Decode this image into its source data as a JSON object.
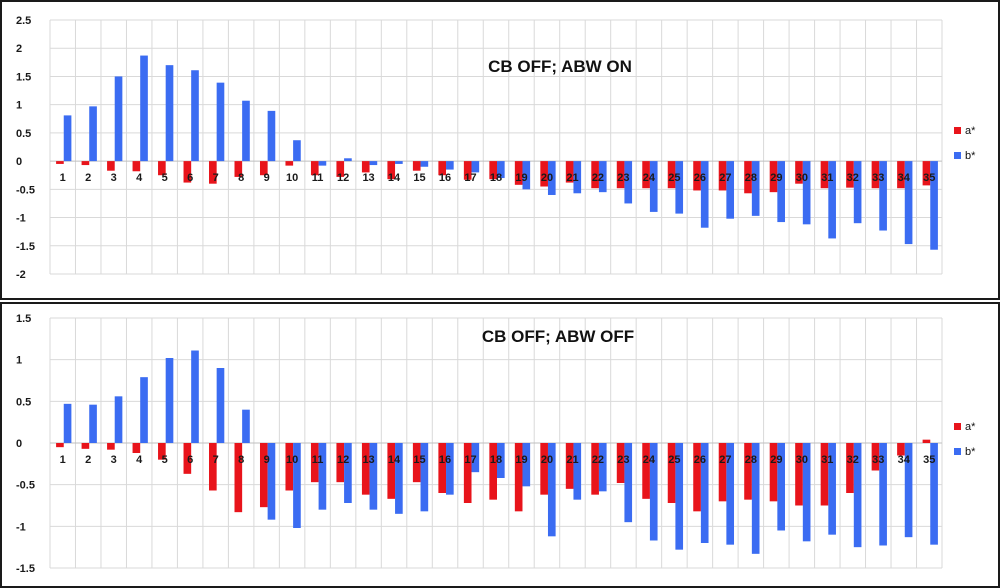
{
  "chart_data": [
    {
      "type": "bar",
      "title": "CB OFF; ABW ON",
      "categories": [
        "1",
        "2",
        "3",
        "4",
        "5",
        "6",
        "7",
        "8",
        "9",
        "10",
        "11",
        "12",
        "13",
        "14",
        "15",
        "16",
        "17",
        "18",
        "19",
        "20",
        "21",
        "22",
        "23",
        "24",
        "25",
        "26",
        "27",
        "28",
        "29",
        "30",
        "31",
        "32",
        "33",
        "34",
        "35"
      ],
      "ylim": [
        -2,
        2.5
      ],
      "yticks": [
        "2.5",
        "2",
        "1.5",
        "1",
        "0.5",
        "0",
        "-0.5",
        "-1",
        "-1.5",
        "-2"
      ],
      "ytick_values": [
        2.5,
        2,
        1.5,
        1,
        0.5,
        0,
        -0.5,
        -1,
        -1.5,
        -2
      ],
      "grid": true,
      "legend_position": "right",
      "series": [
        {
          "name": "a*",
          "color": "#e8141b",
          "values": [
            -0.05,
            -0.07,
            -0.17,
            -0.18,
            -0.25,
            -0.38,
            -0.4,
            -0.28,
            -0.25,
            -0.08,
            -0.25,
            -0.28,
            -0.2,
            -0.32,
            -0.17,
            -0.25,
            -0.33,
            -0.32,
            -0.42,
            -0.45,
            -0.38,
            -0.48,
            -0.48,
            -0.48,
            -0.48,
            -0.52,
            -0.52,
            -0.57,
            -0.55,
            -0.4,
            -0.48,
            -0.47,
            -0.48,
            -0.48,
            -0.43
          ]
        },
        {
          "name": "b*",
          "color": "#3b6cf2",
          "values": [
            0.81,
            0.97,
            1.5,
            1.87,
            1.7,
            1.61,
            1.39,
            1.07,
            0.89,
            0.37,
            -0.08,
            0.05,
            -0.07,
            -0.05,
            -0.1,
            -0.15,
            -0.2,
            -0.3,
            -0.5,
            -0.6,
            -0.57,
            -0.55,
            -0.75,
            -0.9,
            -0.93,
            -1.18,
            -1.02,
            -0.97,
            -1.08,
            -1.12,
            -1.37,
            -1.1,
            -1.23,
            -1.47,
            -1.57
          ]
        }
      ]
    },
    {
      "type": "bar",
      "title": "CB OFF; ABW OFF",
      "categories": [
        "1",
        "2",
        "3",
        "4",
        "5",
        "6",
        "7",
        "8",
        "9",
        "10",
        "11",
        "12",
        "13",
        "14",
        "15",
        "16",
        "17",
        "18",
        "19",
        "20",
        "21",
        "22",
        "23",
        "24",
        "25",
        "26",
        "27",
        "28",
        "29",
        "30",
        "31",
        "32",
        "33",
        "34",
        "35"
      ],
      "ylim": [
        -1.5,
        1.5
      ],
      "yticks": [
        "1.5",
        "1",
        "0.5",
        "0",
        "-0.5",
        "-1",
        "-1.5"
      ],
      "ytick_values": [
        1.5,
        1,
        0.5,
        0,
        -0.5,
        -1,
        -1.5
      ],
      "grid": true,
      "legend_position": "right",
      "series": [
        {
          "name": "a*",
          "color": "#e8141b",
          "values": [
            -0.05,
            -0.07,
            -0.08,
            -0.12,
            -0.2,
            -0.37,
            -0.57,
            -0.83,
            -0.77,
            -0.57,
            -0.47,
            -0.47,
            -0.62,
            -0.67,
            -0.47,
            -0.6,
            -0.72,
            -0.68,
            -0.82,
            -0.62,
            -0.55,
            -0.62,
            -0.48,
            -0.67,
            -0.72,
            -0.82,
            -0.7,
            -0.68,
            -0.7,
            -0.75,
            -0.75,
            -0.6,
            -0.33,
            -0.15,
            0.04
          ]
        },
        {
          "name": "b*",
          "color": "#3b6cf2",
          "values": [
            0.47,
            0.46,
            0.56,
            0.79,
            1.02,
            1.11,
            0.9,
            0.4,
            -0.92,
            -1.02,
            -0.8,
            -0.72,
            -0.8,
            -0.85,
            -0.82,
            -0.62,
            -0.35,
            -0.42,
            -0.52,
            -1.12,
            -0.68,
            -0.58,
            -0.95,
            -1.17,
            -1.28,
            -1.2,
            -1.22,
            -1.33,
            -1.05,
            -1.18,
            -1.1,
            -1.25,
            -1.23,
            -1.13,
            -1.22
          ]
        }
      ]
    }
  ]
}
